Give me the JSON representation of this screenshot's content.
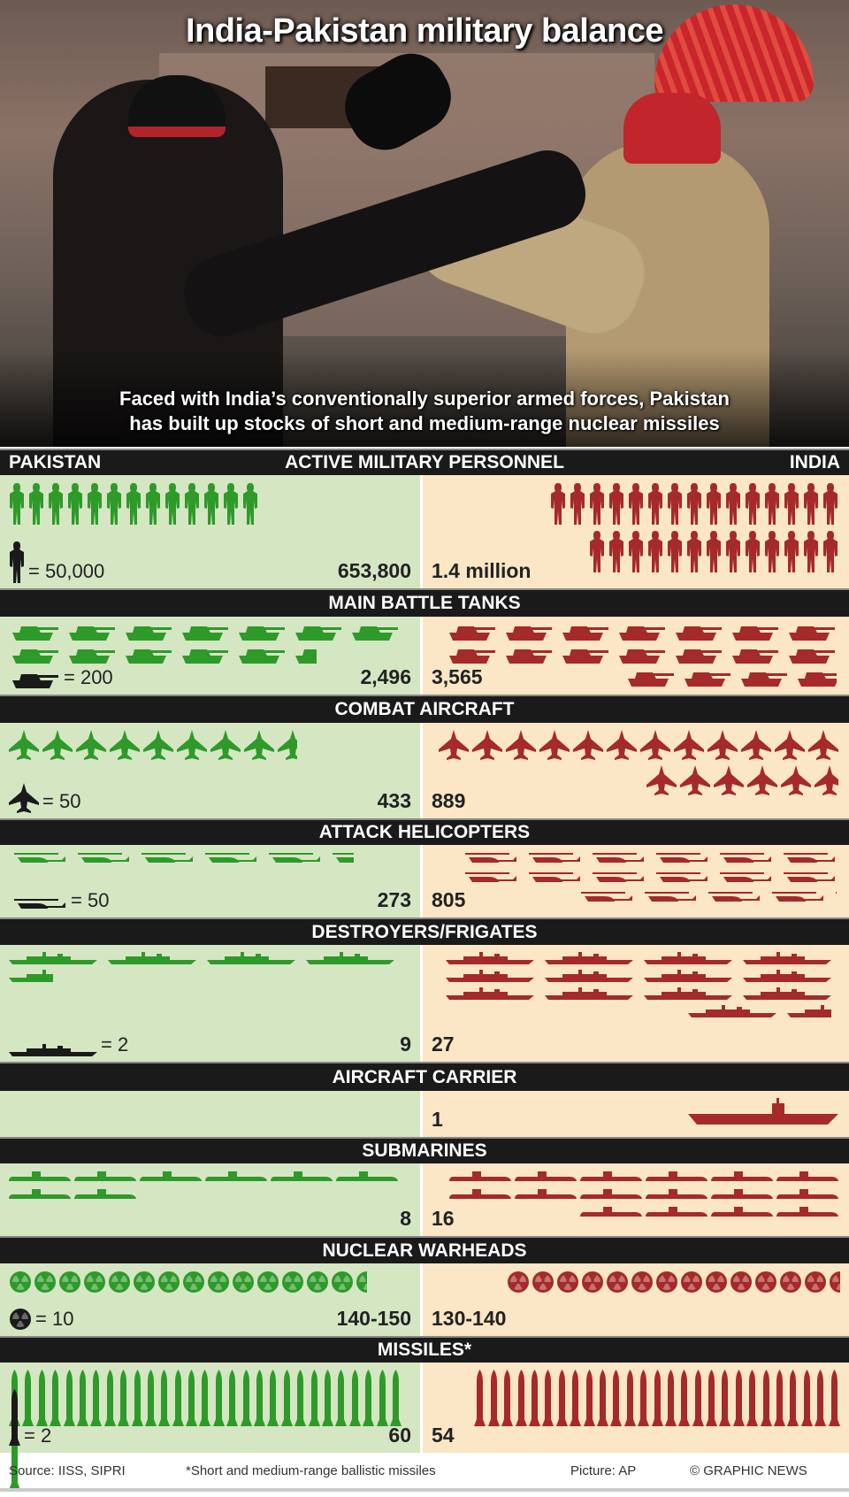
{
  "title": "India-Pakistan military balance",
  "caption_lines": [
    "Faced with India’s conventionally superior armed forces, Pakistan",
    "has built up stocks of short and medium-range nuclear missiles"
  ],
  "countries": {
    "left": "PAKISTAN",
    "right": "INDIA"
  },
  "colors": {
    "pakistan": "#2e9a2a",
    "india": "#a52a2a",
    "pakistan_bg": "#d5e6c3",
    "india_bg": "#fbe6c6",
    "key": "#1a1a1a",
    "header": "#1a1a1a"
  },
  "sections": [
    {
      "label": "ACTIVE MILITARY PERSONNEL",
      "icon": "soldier-icon",
      "key": "= 50,000",
      "pakistan": "653,800",
      "india": "1.4 million"
    },
    {
      "label": "MAIN BATTLE TANKS",
      "icon": "tank-icon",
      "key": "= 200",
      "pakistan": "2,496",
      "india": "3,565"
    },
    {
      "label": "COMBAT AIRCRAFT",
      "icon": "jet-icon",
      "key": "= 50",
      "pakistan": "433",
      "india": "889"
    },
    {
      "label": "ATTACK HELICOPTERS",
      "icon": "helicopter-icon",
      "key": "= 50",
      "pakistan": "273",
      "india": "805"
    },
    {
      "label": "DESTROYERS/FRIGATES",
      "icon": "warship-icon",
      "key": "= 2",
      "pakistan": "9",
      "india": "27"
    },
    {
      "label": "AIRCRAFT CARRIER",
      "icon": "carrier-icon",
      "key": "",
      "pakistan": "",
      "india": "1"
    },
    {
      "label": "SUBMARINES",
      "icon": "submarine-icon",
      "key": "",
      "pakistan": "8",
      "india": "16"
    },
    {
      "label": "NUCLEAR WARHEADS",
      "icon": "radiation-icon",
      "key": "= 10",
      "pakistan": "140-150",
      "india": "130-140"
    },
    {
      "label": "MISSILES*",
      "icon": "missile-icon",
      "key": "= 2",
      "pakistan": "60",
      "india": "54"
    }
  ],
  "chart_data": {
    "type": "bar",
    "style": "pictogram",
    "categories": [
      "Active military personnel",
      "Main battle tanks",
      "Combat aircraft",
      "Attack helicopters",
      "Destroyers/frigates",
      "Aircraft carrier",
      "Submarines",
      "Nuclear warheads",
      "Missiles*"
    ],
    "units_per_icon": [
      50000,
      200,
      50,
      50,
      2,
      1,
      1,
      10,
      2
    ],
    "series": [
      {
        "name": "PAKISTAN",
        "values": [
          653800,
          2496,
          433,
          273,
          9,
          0,
          8,
          145,
          60
        ]
      },
      {
        "name": "INDIA",
        "values": [
          1400000,
          3565,
          889,
          805,
          27,
          1,
          16,
          135,
          54
        ]
      }
    ]
  },
  "footer": {
    "source": "Source: IISS, SIPRI",
    "note": "*Short and medium-range ballistic missiles",
    "picture": "Picture: AP",
    "credit": "© GRAPHIC NEWS"
  }
}
